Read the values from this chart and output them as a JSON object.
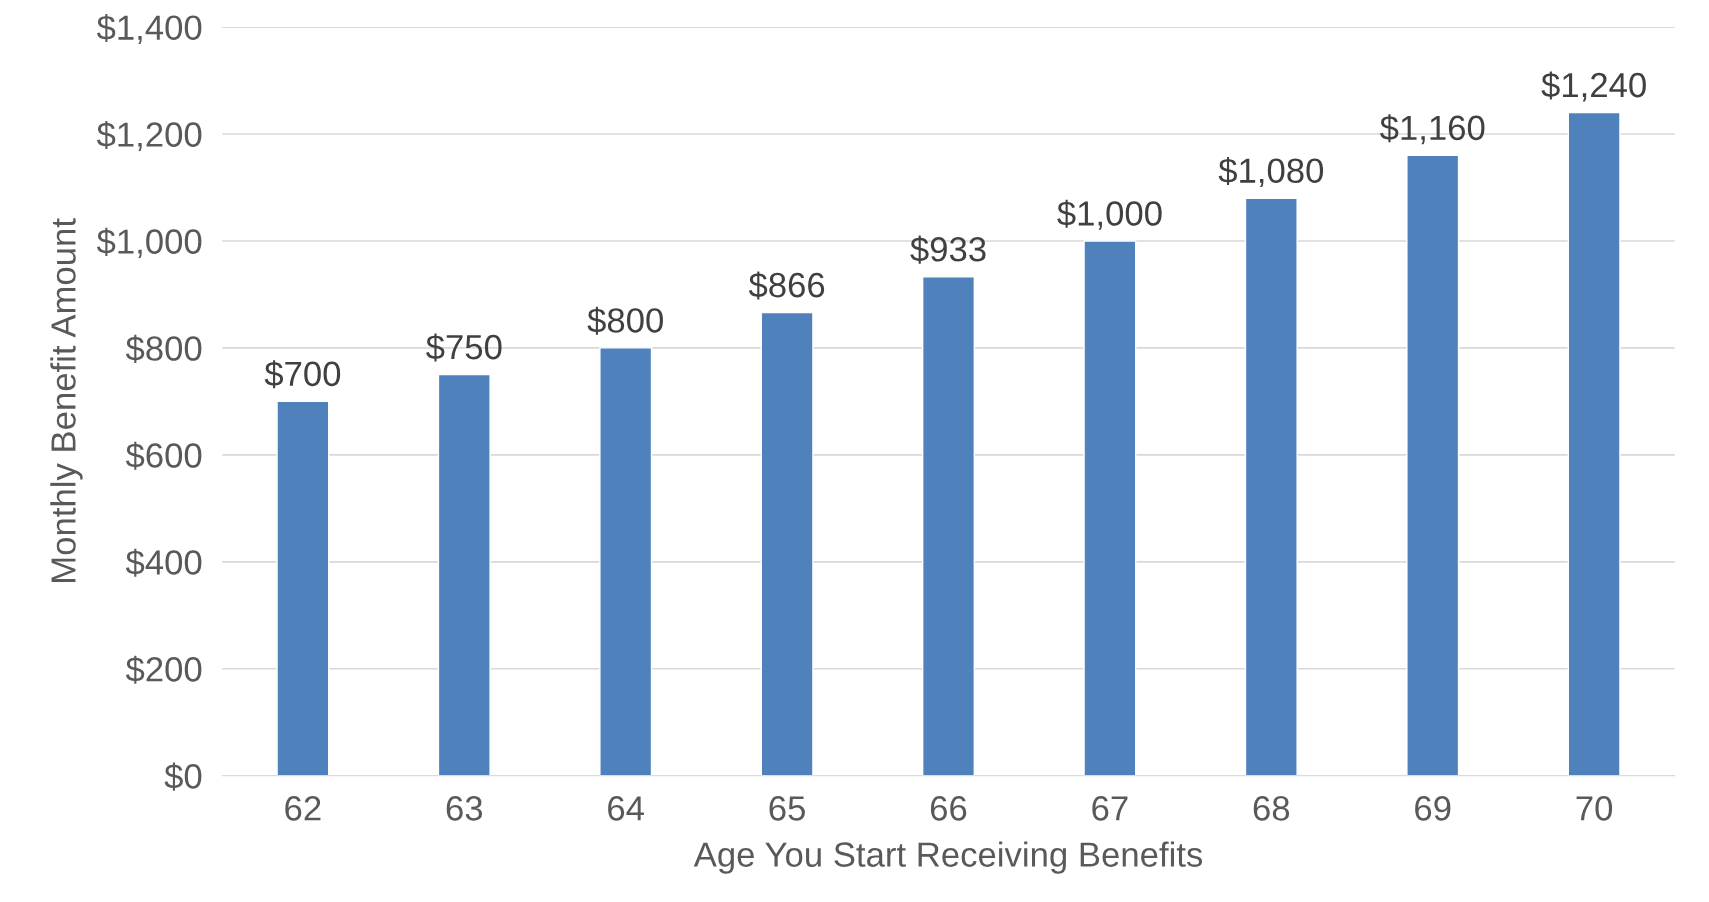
{
  "chart_data": {
    "type": "bar",
    "xlabel": "Age You Start Receiving Benefits",
    "ylabel": "Monthly Benefit Amount",
    "categories": [
      "62",
      "63",
      "64",
      "65",
      "66",
      "67",
      "68",
      "69",
      "70"
    ],
    "values": [
      700,
      750,
      800,
      866,
      933,
      1000,
      1080,
      1160,
      1240
    ],
    "value_labels": [
      "$700",
      "$750",
      "$800",
      "$866",
      "$933",
      "$1,000",
      "$1,080",
      "$1,160",
      "$1,240"
    ],
    "color": "#4f81bd",
    "ylim": [
      0,
      1400
    ],
    "yticks": [
      {
        "value": 0,
        "label": "$0"
      },
      {
        "value": 200,
        "label": "$200"
      },
      {
        "value": 400,
        "label": "$400"
      },
      {
        "value": 600,
        "label": "$600"
      },
      {
        "value": 800,
        "label": "$800"
      },
      {
        "value": 1000,
        "label": "$1,000"
      },
      {
        "value": 1200,
        "label": "$1,200"
      },
      {
        "value": 1400,
        "label": "$1,400"
      }
    ],
    "grid": "y",
    "legend": false
  }
}
